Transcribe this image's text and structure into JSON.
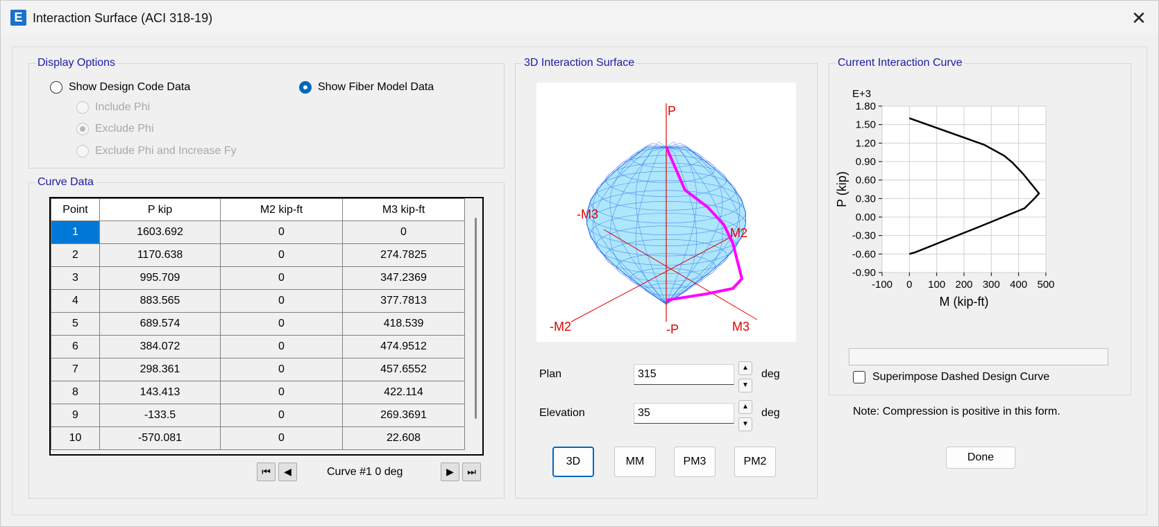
{
  "window": {
    "title": "Interaction Surface (ACI 318-19)",
    "app_icon_letter": "E"
  },
  "display_options": {
    "title": "Display Options",
    "options": [
      {
        "label": "Show Design Code Data",
        "checked": false,
        "disabled": false
      },
      {
        "label": "Show Fiber Model Data",
        "checked": true,
        "disabled": false
      }
    ],
    "sub_options": [
      {
        "label": "Include Phi",
        "checked": false,
        "disabled": true
      },
      {
        "label": "Exclude Phi",
        "checked": true,
        "disabled": true
      },
      {
        "label": "Exclude Phi and Increase Fy",
        "checked": false,
        "disabled": true
      }
    ]
  },
  "curve_data": {
    "title": "Curve Data",
    "columns": [
      "Point",
      "P  kip",
      "M2  kip-ft",
      "M3  kip-ft"
    ],
    "rows": [
      [
        "1",
        "1603.692",
        "0",
        "0"
      ],
      [
        "2",
        "1170.638",
        "0",
        "274.7825"
      ],
      [
        "3",
        "995.709",
        "0",
        "347.2369"
      ],
      [
        "4",
        "883.565",
        "0",
        "377.7813"
      ],
      [
        "5",
        "689.574",
        "0",
        "418.539"
      ],
      [
        "6",
        "384.072",
        "0",
        "474.9512"
      ],
      [
        "7",
        "298.361",
        "0",
        "457.6552"
      ],
      [
        "8",
        "143.413",
        "0",
        "422.114"
      ],
      [
        "9",
        "-133.5",
        "0",
        "269.3691"
      ],
      [
        "10",
        "-570.081",
        "0",
        "22.608"
      ]
    ],
    "selected_row": 0,
    "nav_label": "Curve #1  0 deg"
  },
  "surface": {
    "title": "3D Interaction Surface",
    "axis_labels": {
      "p": "P",
      "neg_p": "-P",
      "m2": "M2",
      "neg_m2": "-M2",
      "m3": "M3",
      "neg_m3": "-M3"
    },
    "plan_label": "Plan",
    "plan_value": "315",
    "elevation_label": "Elevation",
    "elevation_value": "35",
    "unit": "deg",
    "buttons": [
      "3D",
      "MM",
      "PM3",
      "PM2"
    ],
    "active_button": "3D",
    "colors": {
      "mesh": "#2a6ef0",
      "fill": "#aee6fb",
      "curve": "#ff00ff",
      "axis": "#e00000"
    }
  },
  "current_curve": {
    "title": "Current Interaction Curve",
    "superimpose_label": "Superimpose Dashed Design Curve",
    "superimpose_checked": false
  },
  "chart_data": {
    "type": "line",
    "xlabel": "M (kip-ft)",
    "ylabel": "P (kip)",
    "y_multiplier_label": "E+3",
    "xlim": [
      -100,
      500
    ],
    "ylim": [
      -0.9,
      1.8
    ],
    "x_ticks": [
      -100,
      0,
      100,
      200,
      300,
      400,
      500
    ],
    "x_tick_labels": [
      "-100",
      "0",
      "100",
      "200",
      "300",
      "400",
      "500"
    ],
    "y_ticks": [
      1.8,
      1.5,
      1.2,
      0.9,
      0.6,
      0.3,
      0.0,
      -0.3,
      -0.6,
      -0.9
    ],
    "y_tick_labels": [
      "1.80",
      "1.50",
      "1.20",
      "0.90",
      "0.60",
      "0.30",
      "0.00",
      "-0.30",
      "-0.60",
      "-0.90"
    ],
    "grid": true,
    "series": [
      {
        "x": [
          0,
          274.7825,
          347.2369,
          377.7813,
          418.539,
          474.9512,
          457.6552,
          422.114,
          269.3691,
          22.608,
          0
        ],
        "y": [
          1.603692,
          1.170638,
          0.995709,
          0.883565,
          0.689574,
          0.384072,
          0.298361,
          0.143413,
          -0.1335,
          -0.570081,
          -0.6
        ]
      }
    ]
  },
  "note": "Note:  Compression is positive in this form.",
  "done_label": "Done"
}
